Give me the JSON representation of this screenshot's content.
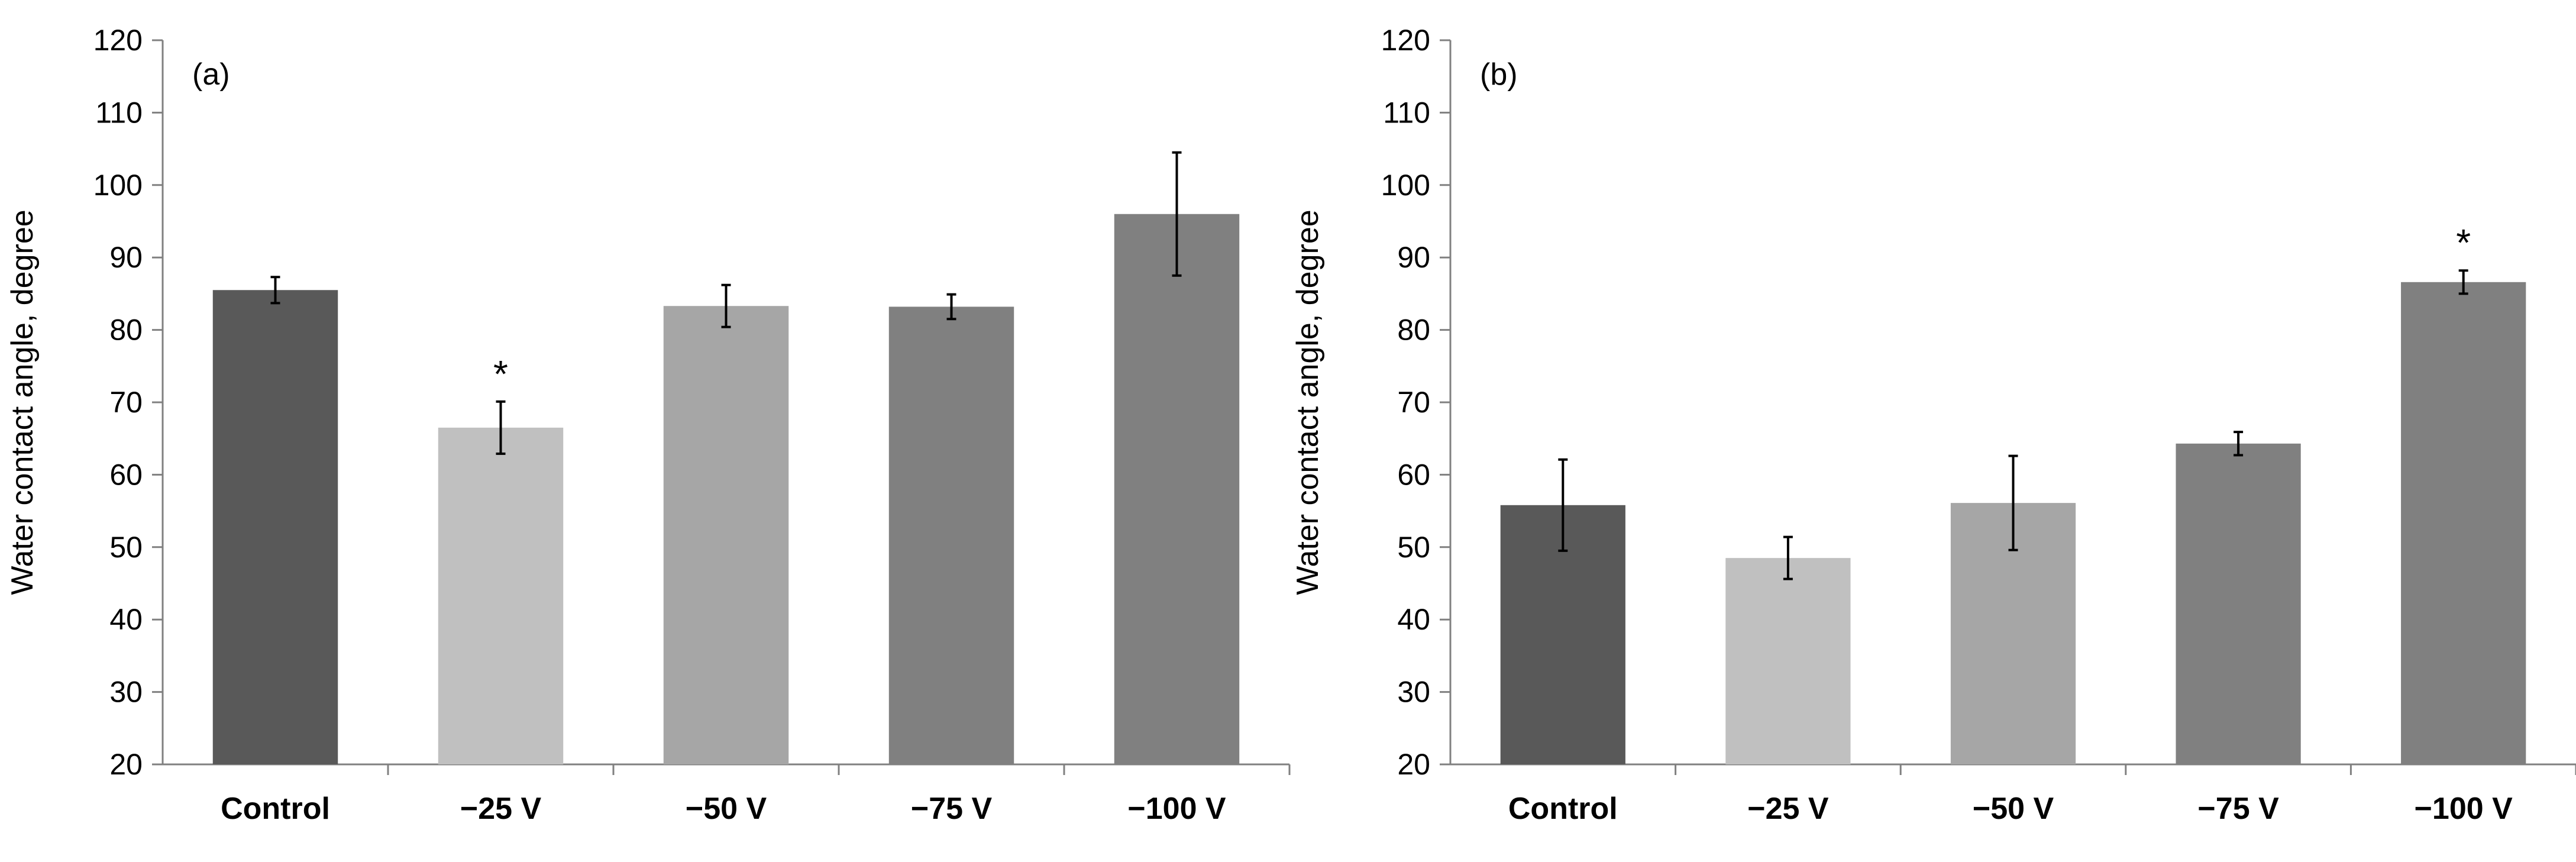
{
  "chart_data": [
    {
      "type": "bar",
      "panel_label": "(a)",
      "categories": [
        "Control",
        "−25 V",
        "−50 V",
        "−75 V",
        "−100 V"
      ],
      "values": [
        85.5,
        66.5,
        83.3,
        83.2,
        96.0
      ],
      "errors": [
        1.8,
        3.6,
        2.9,
        1.7,
        8.5
      ],
      "significance": [
        "",
        "*",
        "",
        "",
        ""
      ],
      "colors": [
        "#595959",
        "#c0c0c0",
        "#a6a6a6",
        "#808080",
        "#808080"
      ],
      "ylabel": "Water contact angle, degree",
      "xlabel": "",
      "ylim": [
        20,
        120
      ],
      "yticks": [
        20,
        30,
        40,
        50,
        60,
        70,
        80,
        90,
        100,
        110,
        120
      ],
      "grid": false
    },
    {
      "type": "bar",
      "panel_label": "(b)",
      "categories": [
        "Control",
        "−25 V",
        "−50 V",
        "−75 V",
        "−100 V"
      ],
      "values": [
        55.8,
        48.5,
        56.1,
        64.3,
        86.6
      ],
      "errors": [
        6.3,
        2.9,
        6.5,
        1.6,
        1.6
      ],
      "significance": [
        "",
        "",
        "",
        "",
        "*"
      ],
      "colors": [
        "#595959",
        "#c0c0c0",
        "#a6a6a6",
        "#808080",
        "#808080"
      ],
      "ylabel": "Water contact angle, degree",
      "xlabel": "",
      "ylim": [
        20,
        120
      ],
      "yticks": [
        20,
        30,
        40,
        50,
        60,
        70,
        80,
        90,
        100,
        110,
        120
      ],
      "grid": false
    }
  ]
}
